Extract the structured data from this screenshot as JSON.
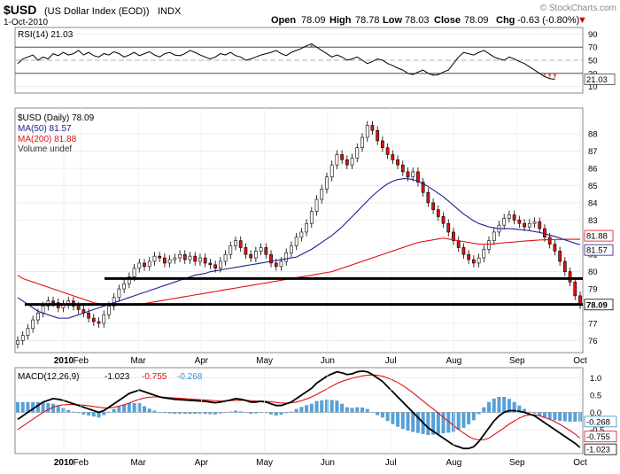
{
  "header": {
    "ticker": "$USD",
    "name": "(US Dollar Index (EOD))",
    "exchange": "INDX",
    "watermark": "© StockCharts.com",
    "date": "1-Oct-2010",
    "open_label": "Open",
    "open": "78.09",
    "high_label": "High",
    "high": "78.78",
    "low_label": "Low",
    "low": "78.03",
    "close_label": "Close",
    "close": "78.09",
    "chg_label": "Chg",
    "chg": "-0.63 (-0.80%)"
  },
  "colors": {
    "price": "#000000",
    "ma50": "#1c1f8c",
    "ma200": "#e01010",
    "macd_hist": "#3a8fd0",
    "signal": "#e01010",
    "rsi_ob": "#3a7a3a",
    "rsi_os": "#b02020"
  },
  "chart_data": [
    {
      "type": "line",
      "panel": "rsi",
      "legend": "RSI(14) 21.03",
      "ylim": [
        0,
        100
      ],
      "yticks": [
        "90",
        "70",
        "50",
        "30",
        "10"
      ],
      "last_value": "21.03",
      "values": [
        45,
        52,
        55,
        58,
        50,
        55,
        52,
        60,
        57,
        62,
        58,
        60,
        65,
        58,
        62,
        57,
        55,
        60,
        58,
        63,
        60,
        55,
        58,
        62,
        57,
        60,
        63,
        58,
        55,
        60,
        62,
        58,
        57,
        60,
        65,
        62,
        58,
        55,
        52,
        55,
        60,
        58,
        62,
        57,
        55,
        50,
        52,
        55,
        58,
        60,
        62,
        65,
        60,
        57,
        62,
        65,
        68,
        72,
        75,
        70,
        65,
        60,
        55,
        58,
        55,
        50,
        52,
        55,
        50,
        45,
        48,
        52,
        50,
        45,
        42,
        38,
        35,
        30,
        28,
        32,
        35,
        30,
        27,
        28,
        32,
        35,
        45,
        55,
        62,
        60,
        58,
        62,
        65,
        60,
        55,
        52,
        50,
        55,
        52,
        48,
        45,
        40,
        35,
        30,
        25,
        22,
        21
      ]
    },
    {
      "type": "candlestick",
      "panel": "price",
      "legend": [
        "$USD (Daily) 78.09",
        "MA(50) 81.57",
        "MA(200) 81.88",
        "Volume undef"
      ],
      "x_ticks": [
        "2010",
        "Feb",
        "Mar",
        "Apr",
        "May",
        "Jun",
        "Jul",
        "Aug",
        "Sep",
        "Oct"
      ],
      "ylim": [
        75.3,
        89.5
      ],
      "yticks": [
        "88",
        "87",
        "86",
        "85",
        "84",
        "83",
        "81",
        "80",
        "79",
        "77",
        "76"
      ],
      "horizontal_lines": [
        79.6,
        78.1
      ],
      "last_labels": [
        {
          "label": "81.88",
          "value": 81.88
        },
        {
          "label": "81.57",
          "value": 81.57
        },
        {
          "label": "78.09",
          "value": 78.09
        }
      ],
      "close": [
        76.0,
        76.3,
        76.7,
        77.2,
        77.6,
        78.0,
        78.3,
        78.2,
        77.9,
        78.1,
        78.3,
        78.0,
        77.8,
        77.6,
        77.3,
        77.1,
        77.0,
        77.5,
        78.0,
        78.5,
        79.0,
        79.3,
        79.7,
        80.2,
        80.5,
        80.3,
        80.6,
        80.9,
        80.8,
        80.5,
        80.7,
        80.8,
        81.0,
        80.7,
        80.9,
        80.6,
        80.8,
        80.5,
        80.4,
        80.2,
        80.6,
        81.0,
        81.5,
        81.8,
        81.4,
        81.0,
        80.8,
        81.2,
        81.4,
        81.0,
        80.5,
        80.3,
        80.6,
        81.1,
        81.5,
        82.0,
        82.3,
        82.8,
        83.5,
        84.2,
        84.8,
        85.5,
        86.2,
        86.8,
        86.5,
        86.2,
        86.6,
        87.2,
        87.8,
        88.5,
        88.2,
        87.6,
        87.2,
        86.8,
        86.5,
        86.2,
        85.8,
        85.5,
        85.8,
        85.2,
        84.6,
        84.0,
        83.6,
        83.2,
        82.8,
        82.3,
        81.8,
        81.4,
        81.0,
        80.7,
        80.5,
        80.8,
        81.3,
        81.8,
        82.3,
        82.7,
        83.1,
        83.3,
        83.0,
        82.8,
        82.6,
        82.8,
        82.9,
        82.5,
        82.0,
        81.6,
        81.2,
        80.6,
        80.0,
        79.4,
        78.6,
        78.09
      ],
      "ma50": [
        78.5,
        78.3,
        78.1,
        77.9,
        77.7,
        77.6,
        77.5,
        77.4,
        77.3,
        77.3,
        77.3,
        77.4,
        77.5,
        77.6,
        77.7,
        77.8,
        77.9,
        78.0,
        78.1,
        78.2,
        78.3,
        78.4,
        78.5,
        78.6,
        78.7,
        78.8,
        78.9,
        79.0,
        79.1,
        79.2,
        79.3,
        79.4,
        79.5,
        79.6,
        79.7,
        79.8,
        79.85,
        79.9,
        80.0,
        80.05,
        80.1,
        80.15,
        80.2,
        80.25,
        80.3,
        80.35,
        80.4,
        80.45,
        80.5,
        80.55,
        80.6,
        80.65,
        80.7,
        80.75,
        80.8,
        80.85,
        81.0,
        81.15,
        81.3,
        81.5,
        81.7,
        81.9,
        82.1,
        82.35,
        82.6,
        82.9,
        83.2,
        83.5,
        83.8,
        84.1,
        84.4,
        84.65,
        84.9,
        85.1,
        85.25,
        85.35,
        85.4,
        85.4,
        85.35,
        85.25,
        85.1,
        84.95,
        84.75,
        84.55,
        84.35,
        84.1,
        83.85,
        83.6,
        83.35,
        83.15,
        82.95,
        82.8,
        82.7,
        82.6,
        82.55,
        82.5,
        82.5,
        82.5,
        82.48,
        82.45,
        82.42,
        82.38,
        82.33,
        82.28,
        82.2,
        82.12,
        82.05,
        81.95,
        81.85,
        81.75,
        81.65,
        81.57
      ],
      "ma200": [
        79.8,
        79.6,
        79.5,
        79.4,
        79.3,
        79.2,
        79.1,
        79.0,
        78.9,
        78.8,
        78.7,
        78.6,
        78.5,
        78.4,
        78.3,
        78.2,
        78.15,
        78.1,
        78.1,
        78.1,
        78.1,
        78.1,
        78.1,
        78.1,
        78.1,
        78.15,
        78.2,
        78.25,
        78.3,
        78.35,
        78.4,
        78.45,
        78.5,
        78.55,
        78.6,
        78.65,
        78.7,
        78.75,
        78.8,
        78.85,
        78.9,
        78.95,
        79.0,
        79.05,
        79.1,
        79.15,
        79.2,
        79.25,
        79.3,
        79.35,
        79.4,
        79.45,
        79.5,
        79.55,
        79.6,
        79.65,
        79.7,
        79.75,
        79.8,
        79.85,
        79.9,
        79.95,
        80.0,
        80.1,
        80.2,
        80.3,
        80.4,
        80.5,
        80.6,
        80.7,
        80.8,
        80.9,
        81.0,
        81.1,
        81.2,
        81.3,
        81.4,
        81.5,
        81.6,
        81.7,
        81.75,
        81.8,
        81.85,
        81.9,
        81.95,
        81.9,
        81.85,
        81.8,
        81.75,
        81.7,
        81.65,
        81.6,
        81.6,
        81.6,
        81.62,
        81.65,
        81.68,
        81.7,
        81.72,
        81.75,
        81.78,
        81.8,
        81.82,
        81.84,
        81.85,
        81.86,
        81.87,
        81.87,
        81.88,
        81.88,
        81.88,
        81.88
      ]
    },
    {
      "type": "line",
      "panel": "macd",
      "legend": {
        "name": "MACD(12,26,9)",
        "macd": "-1.023",
        "signal": "-0.755",
        "hist": "-0.268"
      },
      "ylim": [
        -1.2,
        1.3
      ],
      "yticks": [
        "1.0",
        "0.5",
        "0.0",
        "-0.5"
      ],
      "last_labels": [
        "-0.268",
        "-1.023",
        "-0.755"
      ],
      "macd": [
        -0.2,
        -0.1,
        0.0,
        0.1,
        0.2,
        0.3,
        0.35,
        0.4,
        0.38,
        0.35,
        0.3,
        0.25,
        0.2,
        0.15,
        0.1,
        0.05,
        0.0,
        0.05,
        0.15,
        0.25,
        0.35,
        0.45,
        0.55,
        0.6,
        0.65,
        0.6,
        0.55,
        0.5,
        0.45,
        0.42,
        0.4,
        0.38,
        0.37,
        0.36,
        0.35,
        0.34,
        0.33,
        0.32,
        0.3,
        0.28,
        0.3,
        0.33,
        0.36,
        0.4,
        0.38,
        0.35,
        0.3,
        0.3,
        0.32,
        0.3,
        0.25,
        0.2,
        0.2,
        0.25,
        0.3,
        0.4,
        0.5,
        0.6,
        0.7,
        0.85,
        0.95,
        1.05,
        1.12,
        1.18,
        1.15,
        1.1,
        1.12,
        1.18,
        1.2,
        1.18,
        1.1,
        1.0,
        0.9,
        0.75,
        0.6,
        0.45,
        0.3,
        0.15,
        0.0,
        -0.15,
        -0.3,
        -0.45,
        -0.55,
        -0.65,
        -0.75,
        -0.85,
        -0.95,
        -1.0,
        -1.05,
        -1.05,
        -1.0,
        -0.85,
        -0.65,
        -0.45,
        -0.25,
        -0.1,
        0.0,
        0.05,
        0.05,
        0.03,
        0.0,
        -0.05,
        -0.1,
        -0.2,
        -0.3,
        -0.4,
        -0.5,
        -0.6,
        -0.7,
        -0.8,
        -0.9,
        -1.023
      ],
      "signal": [
        -0.5,
        -0.4,
        -0.3,
        -0.2,
        -0.1,
        0.0,
        0.08,
        0.15,
        0.2,
        0.22,
        0.23,
        0.23,
        0.22,
        0.21,
        0.19,
        0.17,
        0.15,
        0.13,
        0.13,
        0.15,
        0.18,
        0.22,
        0.27,
        0.33,
        0.38,
        0.42,
        0.44,
        0.45,
        0.45,
        0.44,
        0.43,
        0.42,
        0.41,
        0.4,
        0.39,
        0.38,
        0.37,
        0.36,
        0.35,
        0.34,
        0.33,
        0.33,
        0.34,
        0.35,
        0.35,
        0.35,
        0.34,
        0.33,
        0.33,
        0.32,
        0.31,
        0.29,
        0.27,
        0.27,
        0.28,
        0.3,
        0.34,
        0.39,
        0.45,
        0.52,
        0.6,
        0.68,
        0.76,
        0.84,
        0.9,
        0.95,
        0.99,
        1.03,
        1.06,
        1.08,
        1.09,
        1.08,
        1.05,
        1.0,
        0.94,
        0.87,
        0.78,
        0.68,
        0.57,
        0.45,
        0.33,
        0.21,
        0.1,
        -0.02,
        -0.14,
        -0.26,
        -0.38,
        -0.5,
        -0.6,
        -0.7,
        -0.77,
        -0.8,
        -0.8,
        -0.75,
        -0.65,
        -0.55,
        -0.45,
        -0.34,
        -0.25,
        -0.17,
        -0.1,
        -0.07,
        -0.07,
        -0.1,
        -0.15,
        -0.2,
        -0.27,
        -0.35,
        -0.44,
        -0.53,
        -0.63,
        -0.755
      ],
      "x_ticks": [
        "2010",
        "Feb",
        "Mar",
        "Apr",
        "May",
        "Jun",
        "Jul",
        "Aug",
        "Sep",
        "Oct"
      ]
    }
  ]
}
